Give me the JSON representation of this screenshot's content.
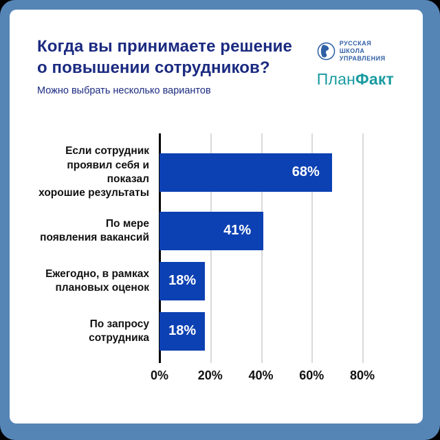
{
  "frame": {
    "outer_background": "#000000",
    "border_color": "#5585b5",
    "card_background": "#ffffff"
  },
  "logos": {
    "rsu": {
      "line1": "РУССКАЯ",
      "line2": "ШКОЛА",
      "line3": "УПРАВЛЕНИЯ",
      "color": "#2f5fa5",
      "icon": "rsu-face-globe-icon"
    },
    "planfact": {
      "regular": "План",
      "bold": "Факт",
      "color": "#189ba1"
    }
  },
  "chart_data": {
    "type": "bar",
    "orientation": "horizontal",
    "title": "Когда вы принимаете решение о повышении сотрудников?",
    "subtitle": "Можно выбрать несколько вариантов",
    "categories": [
      "Если сотрудник\nпроявил себя и показал\nхорошие результаты",
      "По мере\nпоявления вакансий",
      "Ежегодно, в рамках\nплановых оценок",
      "По запросу\nсотрудника"
    ],
    "values": [
      68,
      41,
      18,
      18
    ],
    "value_labels": [
      "68%",
      "41%",
      "18%",
      "18%"
    ],
    "x_tick_labels": [
      "0%",
      "20%",
      "40%",
      "60%",
      "80%"
    ],
    "x_tick_values": [
      0,
      20,
      40,
      60,
      80
    ],
    "xlim": [
      0,
      93
    ],
    "grid": true,
    "legend": false,
    "bar_color": "#0c41b3",
    "value_label_color": "#ffffff",
    "gridline_color": "#d9d9d9",
    "axis_color": "#000000",
    "category_label_color": "#111111",
    "title_color": "#1b2a80"
  }
}
